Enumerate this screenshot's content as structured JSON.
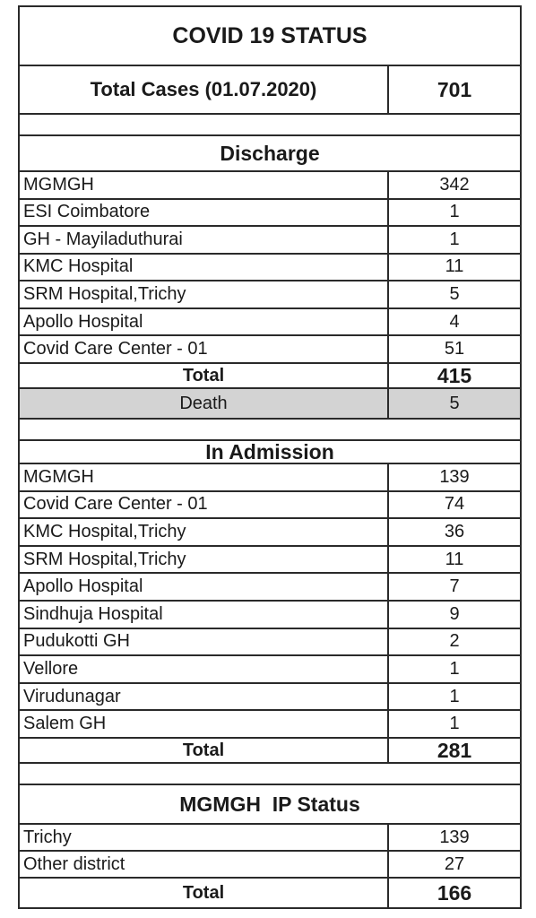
{
  "title": "COVID 19 STATUS",
  "total_cases": {
    "label": "Total Cases (01.07.2020)",
    "value": "701"
  },
  "discharge": {
    "heading": "Discharge",
    "rows": [
      {
        "label": "MGMGH",
        "value": "342"
      },
      {
        "label": "ESI Coimbatore",
        "value": "1"
      },
      {
        "label": "GH - Mayiladuthurai",
        "value": "1"
      },
      {
        "label": "KMC Hospital",
        "value": "11"
      },
      {
        "label": "SRM Hospital,Trichy",
        "value": "5"
      },
      {
        "label": "Apollo Hospital",
        "value": "4"
      },
      {
        "label": "Covid Care Center - 01",
        "value": "51"
      }
    ],
    "total_label": "Total",
    "total_value": "415"
  },
  "death": {
    "label": "Death",
    "value": "5"
  },
  "admission": {
    "heading": "In Admission",
    "rows": [
      {
        "label": "MGMGH",
        "value": "139"
      },
      {
        "label": "Covid Care Center - 01",
        "value": "74"
      },
      {
        "label": "KMC Hospital,Trichy",
        "value": "36"
      },
      {
        "label": "SRM Hospital,Trichy",
        "value": "11"
      },
      {
        "label": "Apollo Hospital",
        "value": "7"
      },
      {
        "label": "Sindhuja Hospital",
        "value": "9"
      },
      {
        "label": "Pudukotti GH",
        "value": "2"
      },
      {
        "label": "Vellore",
        "value": "1"
      },
      {
        "label": "Virudunagar",
        "value": "1"
      },
      {
        "label": "Salem GH",
        "value": "1"
      }
    ],
    "total_label": "Total",
    "total_value": "281"
  },
  "ip_status": {
    "heading": "MGMGH  IP Status",
    "rows": [
      {
        "label": "Trichy",
        "value": "139"
      },
      {
        "label": "Other district",
        "value": "27"
      }
    ],
    "total_label": "Total",
    "total_value": "166"
  }
}
